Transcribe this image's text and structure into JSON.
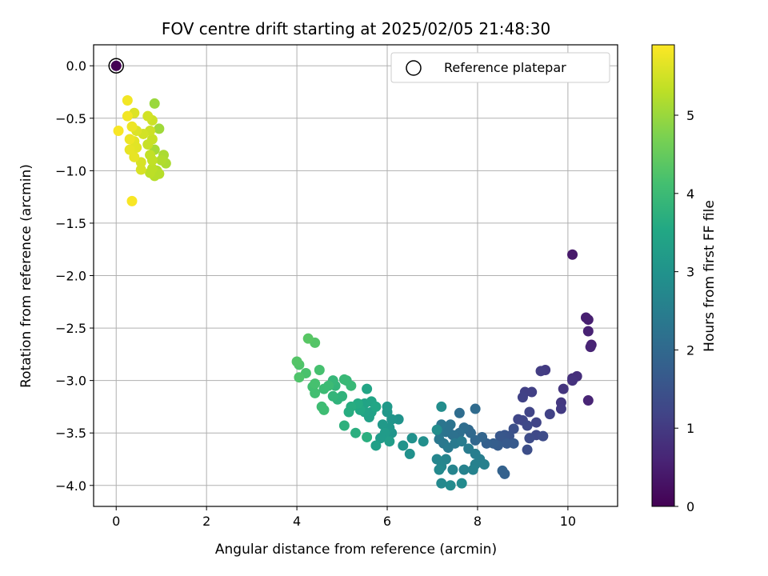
{
  "chart_data": {
    "type": "scatter",
    "title": "FOV centre drift starting at 2025/02/05 21:48:30",
    "xlabel": "Angular distance from reference (arcmin)",
    "ylabel": "Rotation from reference (arcmin)",
    "xlim": [
      -0.5,
      11.1
    ],
    "ylim": [
      -4.2,
      0.2
    ],
    "xticks": [
      0,
      2,
      4,
      6,
      8,
      10
    ],
    "yticks": [
      0.0,
      -0.5,
      -1.0,
      -1.5,
      -2.0,
      -2.5,
      -3.0,
      -3.5,
      -4.0
    ],
    "grid": true,
    "legend": {
      "label": "Reference platepar",
      "position": "top-right"
    },
    "colorbar": {
      "label": "Hours from first FF file",
      "range": [
        0,
        5.9
      ],
      "ticks": [
        0,
        1,
        2,
        3,
        4,
        5
      ],
      "colormap": "viridis"
    },
    "reference_point": {
      "x": 0.0,
      "y": 0.0
    },
    "points": [
      {
        "x": 10.1,
        "y": -1.8,
        "h": 0.4
      },
      {
        "x": 10.4,
        "y": -2.4,
        "h": 0.5
      },
      {
        "x": 10.45,
        "y": -2.42,
        "h": 0.5
      },
      {
        "x": 10.45,
        "y": -2.53,
        "h": 0.55
      },
      {
        "x": 10.52,
        "y": -2.66,
        "h": 0.55
      },
      {
        "x": 10.5,
        "y": -2.68,
        "h": 0.6
      },
      {
        "x": 10.45,
        "y": -3.19,
        "h": 0.6
      },
      {
        "x": 10.2,
        "y": -2.96,
        "h": 0.8
      },
      {
        "x": 10.1,
        "y": -2.98,
        "h": 0.8
      },
      {
        "x": 10.1,
        "y": -3.0,
        "h": 0.85
      },
      {
        "x": 9.9,
        "y": -3.08,
        "h": 0.9
      },
      {
        "x": 9.85,
        "y": -3.21,
        "h": 0.95
      },
      {
        "x": 9.85,
        "y": -3.27,
        "h": 1.0
      },
      {
        "x": 9.5,
        "y": -2.9,
        "h": 1.0
      },
      {
        "x": 9.4,
        "y": -2.91,
        "h": 1.05
      },
      {
        "x": 9.2,
        "y": -3.11,
        "h": 1.1
      },
      {
        "x": 9.05,
        "y": -3.11,
        "h": 1.1
      },
      {
        "x": 9.0,
        "y": -3.16,
        "h": 1.15
      },
      {
        "x": 9.6,
        "y": -3.32,
        "h": 1.15
      },
      {
        "x": 9.3,
        "y": -3.4,
        "h": 1.2
      },
      {
        "x": 9.15,
        "y": -3.3,
        "h": 1.2
      },
      {
        "x": 9.0,
        "y": -3.38,
        "h": 1.25
      },
      {
        "x": 8.9,
        "y": -3.37,
        "h": 1.25
      },
      {
        "x": 9.1,
        "y": -3.43,
        "h": 1.3
      },
      {
        "x": 9.3,
        "y": -3.52,
        "h": 1.3
      },
      {
        "x": 9.45,
        "y": -3.53,
        "h": 1.35
      },
      {
        "x": 9.15,
        "y": -3.55,
        "h": 1.35
      },
      {
        "x": 9.1,
        "y": -3.66,
        "h": 1.4
      },
      {
        "x": 8.8,
        "y": -3.46,
        "h": 1.45
      },
      {
        "x": 8.7,
        "y": -3.53,
        "h": 1.5
      },
      {
        "x": 8.6,
        "y": -3.52,
        "h": 1.55
      },
      {
        "x": 8.5,
        "y": -3.53,
        "h": 1.6
      },
      {
        "x": 8.55,
        "y": -3.58,
        "h": 1.6
      },
      {
        "x": 8.65,
        "y": -3.6,
        "h": 1.65
      },
      {
        "x": 8.8,
        "y": -3.6,
        "h": 1.65
      },
      {
        "x": 8.45,
        "y": -3.62,
        "h": 1.7
      },
      {
        "x": 8.35,
        "y": -3.6,
        "h": 1.75
      },
      {
        "x": 8.2,
        "y": -3.6,
        "h": 1.8
      },
      {
        "x": 8.55,
        "y": -3.86,
        "h": 1.85
      },
      {
        "x": 8.6,
        "y": -3.89,
        "h": 1.85
      },
      {
        "x": 8.1,
        "y": -3.54,
        "h": 1.9
      },
      {
        "x": 7.95,
        "y": -3.57,
        "h": 1.95
      },
      {
        "x": 7.85,
        "y": -3.5,
        "h": 2.0
      },
      {
        "x": 7.8,
        "y": -3.47,
        "h": 2.0
      },
      {
        "x": 7.95,
        "y": -3.27,
        "h": 2.05
      },
      {
        "x": 7.6,
        "y": -3.31,
        "h": 2.1
      },
      {
        "x": 7.7,
        "y": -3.45,
        "h": 2.1
      },
      {
        "x": 7.6,
        "y": -3.5,
        "h": 2.15
      },
      {
        "x": 7.55,
        "y": -3.55,
        "h": 2.15
      },
      {
        "x": 7.45,
        "y": -3.52,
        "h": 2.2
      },
      {
        "x": 7.35,
        "y": -3.45,
        "h": 2.2
      },
      {
        "x": 7.4,
        "y": -3.42,
        "h": 2.25
      },
      {
        "x": 7.3,
        "y": -3.49,
        "h": 2.25
      },
      {
        "x": 7.2,
        "y": -3.42,
        "h": 2.3
      },
      {
        "x": 7.15,
        "y": -3.49,
        "h": 2.3
      },
      {
        "x": 7.15,
        "y": -3.56,
        "h": 2.35
      },
      {
        "x": 7.25,
        "y": -3.6,
        "h": 2.35
      },
      {
        "x": 7.35,
        "y": -3.64,
        "h": 2.4
      },
      {
        "x": 7.5,
        "y": -3.6,
        "h": 2.4
      },
      {
        "x": 7.65,
        "y": -3.58,
        "h": 2.45
      },
      {
        "x": 7.8,
        "y": -3.65,
        "h": 2.45
      },
      {
        "x": 7.95,
        "y": -3.7,
        "h": 2.5
      },
      {
        "x": 8.05,
        "y": -3.75,
        "h": 2.5
      },
      {
        "x": 8.15,
        "y": -3.8,
        "h": 2.55
      },
      {
        "x": 7.95,
        "y": -3.8,
        "h": 2.55
      },
      {
        "x": 7.9,
        "y": -3.85,
        "h": 2.6
      },
      {
        "x": 7.7,
        "y": -3.85,
        "h": 2.6
      },
      {
        "x": 7.45,
        "y": -3.85,
        "h": 2.65
      },
      {
        "x": 7.3,
        "y": -3.75,
        "h": 2.65
      },
      {
        "x": 7.1,
        "y": -3.75,
        "h": 2.7
      },
      {
        "x": 7.2,
        "y": -3.82,
        "h": 2.7
      },
      {
        "x": 7.15,
        "y": -3.85,
        "h": 2.75
      },
      {
        "x": 7.2,
        "y": -3.98,
        "h": 2.75
      },
      {
        "x": 7.4,
        "y": -4.0,
        "h": 2.8
      },
      {
        "x": 7.65,
        "y": -3.98,
        "h": 2.8
      },
      {
        "x": 7.2,
        "y": -3.25,
        "h": 2.85
      },
      {
        "x": 7.1,
        "y": -3.47,
        "h": 2.85
      },
      {
        "x": 6.8,
        "y": -3.58,
        "h": 2.9
      },
      {
        "x": 6.55,
        "y": -3.55,
        "h": 2.95
      },
      {
        "x": 6.5,
        "y": -3.7,
        "h": 2.95
      },
      {
        "x": 6.35,
        "y": -3.62,
        "h": 3.0
      },
      {
        "x": 6.25,
        "y": -3.37,
        "h": 3.0
      },
      {
        "x": 6.1,
        "y": -3.37,
        "h": 3.05
      },
      {
        "x": 6.1,
        "y": -3.5,
        "h": 3.05
      },
      {
        "x": 6.05,
        "y": -3.45,
        "h": 3.1
      },
      {
        "x": 6.0,
        "y": -3.3,
        "h": 3.1
      },
      {
        "x": 6.0,
        "y": -3.25,
        "h": 3.15
      },
      {
        "x": 5.9,
        "y": -3.42,
        "h": 3.15
      },
      {
        "x": 5.95,
        "y": -3.5,
        "h": 3.2
      },
      {
        "x": 5.85,
        "y": -3.55,
        "h": 3.2
      },
      {
        "x": 6.05,
        "y": -3.58,
        "h": 3.25
      },
      {
        "x": 5.75,
        "y": -3.62,
        "h": 3.3
      },
      {
        "x": 5.65,
        "y": -3.3,
        "h": 3.35
      },
      {
        "x": 5.6,
        "y": -3.35,
        "h": 3.35
      },
      {
        "x": 5.5,
        "y": -3.3,
        "h": 3.4
      },
      {
        "x": 5.5,
        "y": -3.22,
        "h": 3.4
      },
      {
        "x": 5.55,
        "y": -3.08,
        "h": 3.45
      },
      {
        "x": 5.65,
        "y": -3.2,
        "h": 3.45
      },
      {
        "x": 5.75,
        "y": -3.25,
        "h": 3.5
      },
      {
        "x": 5.4,
        "y": -3.28,
        "h": 3.55
      },
      {
        "x": 5.35,
        "y": -3.22,
        "h": 3.6
      },
      {
        "x": 5.2,
        "y": -3.25,
        "h": 3.65
      },
      {
        "x": 5.15,
        "y": -3.3,
        "h": 3.65
      },
      {
        "x": 5.3,
        "y": -3.5,
        "h": 3.7
      },
      {
        "x": 5.55,
        "y": -3.54,
        "h": 3.7
      },
      {
        "x": 5.05,
        "y": -3.43,
        "h": 3.75
      },
      {
        "x": 5.0,
        "y": -3.15,
        "h": 3.8
      },
      {
        "x": 4.9,
        "y": -3.18,
        "h": 3.8
      },
      {
        "x": 4.8,
        "y": -3.15,
        "h": 3.85
      },
      {
        "x": 4.85,
        "y": -3.05,
        "h": 3.85
      },
      {
        "x": 4.8,
        "y": -3.0,
        "h": 3.9
      },
      {
        "x": 5.1,
        "y": -3.0,
        "h": 3.9
      },
      {
        "x": 5.05,
        "y": -2.99,
        "h": 3.95
      },
      {
        "x": 5.2,
        "y": -3.05,
        "h": 3.95
      },
      {
        "x": 4.7,
        "y": -3.05,
        "h": 4.0
      },
      {
        "x": 4.6,
        "y": -3.08,
        "h": 4.0
      },
      {
        "x": 4.55,
        "y": -3.25,
        "h": 4.05
      },
      {
        "x": 4.6,
        "y": -3.28,
        "h": 4.05
      },
      {
        "x": 4.4,
        "y": -3.12,
        "h": 4.1
      },
      {
        "x": 4.35,
        "y": -3.06,
        "h": 4.1
      },
      {
        "x": 4.4,
        "y": -3.03,
        "h": 4.15
      },
      {
        "x": 4.5,
        "y": -2.9,
        "h": 4.15
      },
      {
        "x": 4.2,
        "y": -2.93,
        "h": 4.2
      },
      {
        "x": 4.05,
        "y": -2.97,
        "h": 4.25
      },
      {
        "x": 4.05,
        "y": -2.85,
        "h": 4.25
      },
      {
        "x": 4.0,
        "y": -2.82,
        "h": 4.3
      },
      {
        "x": 4.4,
        "y": -2.64,
        "h": 4.3
      },
      {
        "x": 4.25,
        "y": -2.6,
        "h": 4.35
      },
      {
        "x": 0.85,
        "y": -0.36,
        "h": 5.0
      },
      {
        "x": 0.95,
        "y": -0.6,
        "h": 5.05
      },
      {
        "x": 0.85,
        "y": -0.8,
        "h": 5.1
      },
      {
        "x": 1.05,
        "y": -0.85,
        "h": 5.15
      },
      {
        "x": 1.1,
        "y": -0.93,
        "h": 5.15
      },
      {
        "x": 1.0,
        "y": -0.9,
        "h": 5.2
      },
      {
        "x": 0.9,
        "y": -1.0,
        "h": 5.2
      },
      {
        "x": 0.95,
        "y": -1.03,
        "h": 5.25
      },
      {
        "x": 0.85,
        "y": -1.05,
        "h": 5.25
      },
      {
        "x": 0.8,
        "y": -0.98,
        "h": 5.3
      },
      {
        "x": 0.75,
        "y": -1.02,
        "h": 5.3
      },
      {
        "x": 0.8,
        "y": -0.9,
        "h": 5.35
      },
      {
        "x": 0.75,
        "y": -0.85,
        "h": 5.35
      },
      {
        "x": 0.7,
        "y": -0.75,
        "h": 5.4
      },
      {
        "x": 0.8,
        "y": -0.7,
        "h": 5.4
      },
      {
        "x": 0.75,
        "y": -0.62,
        "h": 5.45
      },
      {
        "x": 0.8,
        "y": -0.52,
        "h": 5.45
      },
      {
        "x": 0.7,
        "y": -0.48,
        "h": 5.5
      },
      {
        "x": 0.6,
        "y": -0.65,
        "h": 5.5
      },
      {
        "x": 0.55,
        "y": -0.92,
        "h": 5.55
      },
      {
        "x": 0.55,
        "y": -0.99,
        "h": 5.55
      },
      {
        "x": 0.4,
        "y": -0.45,
        "h": 5.6
      },
      {
        "x": 0.45,
        "y": -0.62,
        "h": 5.6
      },
      {
        "x": 0.4,
        "y": -0.72,
        "h": 5.65
      },
      {
        "x": 0.45,
        "y": -0.78,
        "h": 5.65
      },
      {
        "x": 0.4,
        "y": -0.87,
        "h": 5.7
      },
      {
        "x": 0.3,
        "y": -0.8,
        "h": 5.7
      },
      {
        "x": 0.3,
        "y": -0.7,
        "h": 5.75
      },
      {
        "x": 0.35,
        "y": -0.58,
        "h": 5.75
      },
      {
        "x": 0.25,
        "y": -0.48,
        "h": 5.8
      },
      {
        "x": 0.25,
        "y": -0.33,
        "h": 5.8
      },
      {
        "x": 0.05,
        "y": -0.62,
        "h": 5.85
      },
      {
        "x": 0.35,
        "y": -1.29,
        "h": 5.85
      }
    ]
  }
}
